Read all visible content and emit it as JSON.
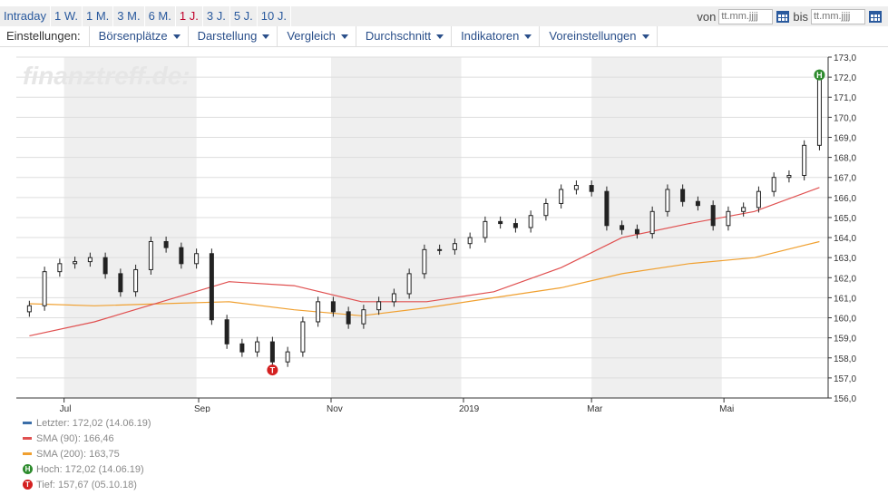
{
  "toolbar": {
    "periods": [
      "Intraday",
      "1 W.",
      "1 M.",
      "3 M.",
      "6 M.",
      "1 J.",
      "3 J.",
      "5 J.",
      "10 J."
    ],
    "active_period": "1 J.",
    "from_label": "von",
    "to_label": "bis",
    "date_placeholder": "tt.mm.jjjj"
  },
  "menu": {
    "settings_label": "Einstellungen:",
    "items": [
      "Börsenplätze",
      "Darstellung",
      "Vergleich",
      "Durchschnitt",
      "Indikatoren",
      "Voreinstellungen"
    ]
  },
  "watermark": "finanztreff.de:",
  "colors": {
    "price": "#222222",
    "sma90": "#e05050",
    "sma200": "#f0a030",
    "last": "#3b6ea8",
    "high_marker": "#2e8b2e",
    "low_marker": "#d42020",
    "band": "#efefef",
    "grid": "#dddddd"
  },
  "chart_data": {
    "type": "line",
    "style": "candlestick",
    "x_tick_labels": [
      "Jul",
      "Sep",
      "Nov",
      "2019",
      "Mar",
      "Mai"
    ],
    "ylim": [
      156,
      173
    ],
    "y_tick_labels": [
      "173,0",
      "172,0",
      "171,0",
      "170,0",
      "169,0",
      "168,0",
      "167,0",
      "166,0",
      "165,0",
      "164,0",
      "163,0",
      "162,0",
      "161,0",
      "160,0",
      "159,0",
      "158,0",
      "157,0",
      "156,0"
    ],
    "grid": true,
    "series": [
      {
        "name": "Letzter",
        "x": [
          "2018-06-15",
          "2018-06-22",
          "2018-06-29",
          "2018-07-06",
          "2018-07-13",
          "2018-07-20",
          "2018-07-27",
          "2018-08-03",
          "2018-08-10",
          "2018-08-17",
          "2018-08-24",
          "2018-08-31",
          "2018-09-07",
          "2018-09-14",
          "2018-09-21",
          "2018-09-28",
          "2018-10-05",
          "2018-10-12",
          "2018-10-19",
          "2018-10-26",
          "2018-11-02",
          "2018-11-09",
          "2018-11-16",
          "2018-11-23",
          "2018-11-30",
          "2018-12-07",
          "2018-12-14",
          "2018-12-21",
          "2018-12-28",
          "2019-01-04",
          "2019-01-11",
          "2019-01-18",
          "2019-01-25",
          "2019-02-01",
          "2019-02-08",
          "2019-02-15",
          "2019-02-22",
          "2019-03-01",
          "2019-03-08",
          "2019-03-15",
          "2019-03-22",
          "2019-03-29",
          "2019-04-05",
          "2019-04-12",
          "2019-04-19",
          "2019-04-26",
          "2019-05-03",
          "2019-05-10",
          "2019-05-17",
          "2019-05-24",
          "2019-05-31",
          "2019-06-07",
          "2019-06-14"
        ],
        "values": [
          160.6,
          162.3,
          162.7,
          162.8,
          163.0,
          162.2,
          161.3,
          162.4,
          163.8,
          163.5,
          162.7,
          163.2,
          159.9,
          158.7,
          158.3,
          158.8,
          157.8,
          158.3,
          159.8,
          160.8,
          160.3,
          159.7,
          160.4,
          160.8,
          161.2,
          162.2,
          163.4,
          163.4,
          163.7,
          164.0,
          164.8,
          164.7,
          164.5,
          165.1,
          165.7,
          166.4,
          166.6,
          166.3,
          164.6,
          164.4,
          164.2,
          165.3,
          166.4,
          165.8,
          165.6,
          164.6,
          165.3,
          165.5,
          166.3,
          167.0,
          167.1,
          168.6,
          172.0
        ]
      },
      {
        "name": "SMA (90)",
        "x": [
          "2018-06-15",
          "2018-07-15",
          "2018-08-15",
          "2018-09-15",
          "2018-10-15",
          "2018-11-15",
          "2018-12-15",
          "2019-01-15",
          "2019-02-15",
          "2019-03-15",
          "2019-04-15",
          "2019-05-15",
          "2019-06-14"
        ],
        "values": [
          159.1,
          159.8,
          160.8,
          161.8,
          161.6,
          160.8,
          160.8,
          161.3,
          162.5,
          164.0,
          164.7,
          165.3,
          166.5
        ]
      },
      {
        "name": "SMA (200)",
        "x": [
          "2018-06-15",
          "2018-07-15",
          "2018-08-15",
          "2018-09-15",
          "2018-10-15",
          "2018-11-15",
          "2018-12-15",
          "2019-01-15",
          "2019-02-15",
          "2019-03-15",
          "2019-04-15",
          "2019-05-15",
          "2019-06-14"
        ],
        "values": [
          160.7,
          160.6,
          160.7,
          160.8,
          160.4,
          160.1,
          160.5,
          161.0,
          161.5,
          162.2,
          162.7,
          163.0,
          163.8
        ]
      }
    ],
    "legend": {
      "position": "bottom-left",
      "entries": [
        {
          "label": "Letzter: 172,02 (14.06.19)",
          "kind": "line",
          "color": "#3b6ea8"
        },
        {
          "label": "SMA (90): 166,46",
          "kind": "line",
          "color": "#e05050"
        },
        {
          "label": "SMA (200): 163,75",
          "kind": "line",
          "color": "#f0a030"
        },
        {
          "label": "Hoch: 172,02 (14.06.19)",
          "kind": "marker",
          "symbol": "H",
          "color": "#2e8b2e"
        },
        {
          "label": "Tief: 157,67 (05.10.18)",
          "kind": "marker",
          "symbol": "T",
          "color": "#d42020"
        }
      ]
    },
    "annotations": [
      {
        "symbol": "H",
        "x": "2019-06-14",
        "y": 172.02
      },
      {
        "symbol": "T",
        "x": "2018-10-05",
        "y": 157.67
      }
    ]
  }
}
